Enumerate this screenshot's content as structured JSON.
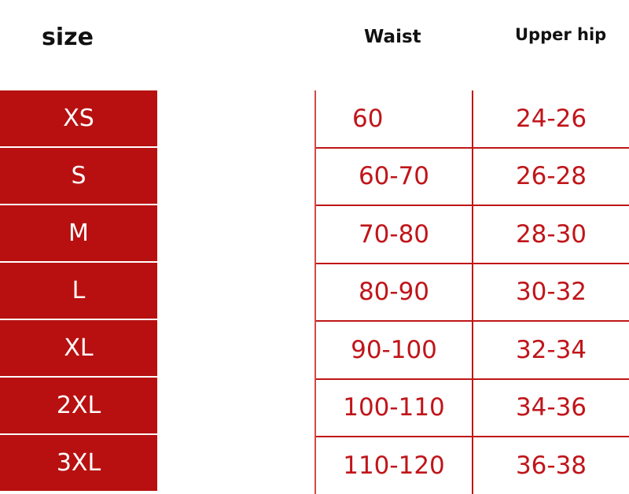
{
  "headers": {
    "size": "size",
    "waist": "Waist",
    "upper_hip": "Upper hip"
  },
  "colors": {
    "size_cell_bg": "#b81010",
    "value_text": "#c0151a",
    "grid_line": "#c01616"
  },
  "rows": [
    {
      "size": "XS",
      "waist": "60",
      "upper_hip": "24-26"
    },
    {
      "size": "S",
      "waist": "60-70",
      "upper_hip": "26-28"
    },
    {
      "size": "M",
      "waist": "70-80",
      "upper_hip": "28-30"
    },
    {
      "size": "L",
      "waist": "80-90",
      "upper_hip": "30-32"
    },
    {
      "size": "XL",
      "waist": "90-100",
      "upper_hip": "32-34"
    },
    {
      "size": "2XL",
      "waist": "100-110",
      "upper_hip": "34-36"
    },
    {
      "size": "3XL",
      "waist": "110-120",
      "upper_hip": "36-38"
    }
  ]
}
